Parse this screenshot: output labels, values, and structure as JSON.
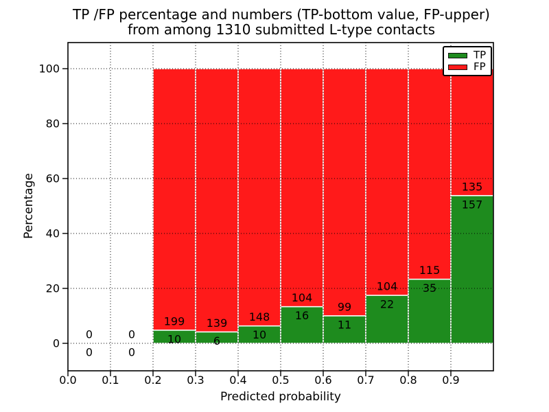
{
  "chart_data": {
    "type": "bar",
    "stacked": true,
    "title_line1": "TP /FP percentage and numbers (TP-bottom value, FP-upper)",
    "title_line2": "from among 1310 submitted L-type contacts",
    "total_contacts": 1310,
    "xlabel": "Predicted probability",
    "ylabel": "Percentage",
    "x_tick_labels": [
      "0.0",
      "0.1",
      "0.2",
      "0.3",
      "0.4",
      "0.5",
      "0.6",
      "0.7",
      "0.8",
      "0.9"
    ],
    "x_tick_values": [
      0.0,
      0.1,
      0.2,
      0.3,
      0.4,
      0.5,
      0.6,
      0.7,
      0.8,
      0.9
    ],
    "y_tick_values": [
      0,
      20,
      40,
      60,
      80,
      100
    ],
    "xlim": [
      0.0,
      1.0
    ],
    "ylim": [
      -10.0,
      109.5
    ],
    "grid": "dotted",
    "legend_position": "upper right",
    "bins": [
      {
        "x_start": 0.0,
        "x_end": 0.1,
        "tp": 0,
        "fp": 0
      },
      {
        "x_start": 0.1,
        "x_end": 0.2,
        "tp": 0,
        "fp": 0
      },
      {
        "x_start": 0.2,
        "x_end": 0.3,
        "tp": 10,
        "fp": 199
      },
      {
        "x_start": 0.3,
        "x_end": 0.4,
        "tp": 6,
        "fp": 139
      },
      {
        "x_start": 0.4,
        "x_end": 0.5,
        "tp": 10,
        "fp": 148
      },
      {
        "x_start": 0.5,
        "x_end": 0.6,
        "tp": 16,
        "fp": 104
      },
      {
        "x_start": 0.6,
        "x_end": 0.7,
        "tp": 11,
        "fp": 99
      },
      {
        "x_start": 0.7,
        "x_end": 0.8,
        "tp": 22,
        "fp": 104
      },
      {
        "x_start": 0.8,
        "x_end": 0.9,
        "tp": 35,
        "fp": 115
      },
      {
        "x_start": 0.9,
        "x_end": 1.0,
        "tp": 157,
        "fp": 135
      }
    ],
    "legend": [
      {
        "label": "TP",
        "color": "#1e8b1e"
      },
      {
        "label": "FP",
        "color": "#ff1a1a"
      }
    ],
    "colors": {
      "tp": "#1e8b1e",
      "fp": "#ff1a1a",
      "bar_edge": "#ffffff",
      "grid": "#000000",
      "axis": "#000000",
      "text": "#000000",
      "background": "#ffffff"
    }
  }
}
